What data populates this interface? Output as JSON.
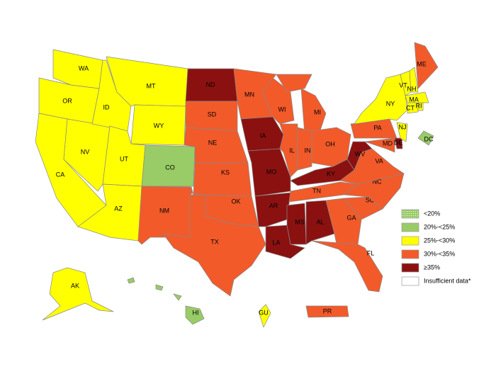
{
  "legend": [
    {
      "label": "<20%",
      "color": "#99cc66",
      "pattern": "dots"
    },
    {
      "label": "20%-<25%",
      "color": "#99cc66"
    },
    {
      "label": "25%-<30%",
      "color": "#ffff00"
    },
    {
      "label": "30%-<35%",
      "color": "#f25a2a"
    },
    {
      "label": "≥35%",
      "color": "#8b1111"
    },
    {
      "label": "Insufficient data*",
      "color": "#ffffff"
    }
  ],
  "states": [
    {
      "label": "WA",
      "color": "#ffff00"
    },
    {
      "label": "OR",
      "color": "#ffff00"
    },
    {
      "label": "CA",
      "color": "#ffff00"
    },
    {
      "label": "NV",
      "color": "#ffff00"
    },
    {
      "label": "ID",
      "color": "#ffff00"
    },
    {
      "label": "MT",
      "color": "#ffff00"
    },
    {
      "label": "WY",
      "color": "#ffff00"
    },
    {
      "label": "UT",
      "color": "#ffff00"
    },
    {
      "label": "AZ",
      "color": "#ffff00"
    },
    {
      "label": "CO",
      "color": "#99cc66"
    },
    {
      "label": "NM",
      "color": "#f25a2a"
    },
    {
      "label": "ND",
      "color": "#8b1111"
    },
    {
      "label": "SD",
      "color": "#f25a2a"
    },
    {
      "label": "NE",
      "color": "#f25a2a"
    },
    {
      "label": "KS",
      "color": "#f25a2a"
    },
    {
      "label": "OK",
      "color": "#f25a2a"
    },
    {
      "label": "TX",
      "color": "#f25a2a"
    },
    {
      "label": "MN",
      "color": "#f25a2a"
    },
    {
      "label": "IA",
      "color": "#8b1111"
    },
    {
      "label": "MO",
      "color": "#8b1111"
    },
    {
      "label": "AR",
      "color": "#8b1111"
    },
    {
      "label": "LA",
      "color": "#8b1111"
    },
    {
      "label": "WI",
      "color": "#f25a2a"
    },
    {
      "label": "IL",
      "color": "#f25a2a"
    },
    {
      "label": "MI",
      "color": "#f25a2a"
    },
    {
      "label": "IN",
      "color": "#f25a2a"
    },
    {
      "label": "OH",
      "color": "#f25a2a"
    },
    {
      "label": "KY",
      "color": "#8b1111"
    },
    {
      "label": "TN",
      "color": "#f25a2a"
    },
    {
      "label": "MS",
      "color": "#8b1111"
    },
    {
      "label": "AL",
      "color": "#8b1111"
    },
    {
      "label": "GA",
      "color": "#f25a2a"
    },
    {
      "label": "FL",
      "color": "#f25a2a"
    },
    {
      "label": "SC",
      "color": "#f25a2a"
    },
    {
      "label": "NC",
      "color": "#f25a2a"
    },
    {
      "label": "VA",
      "color": "#f25a2a"
    },
    {
      "label": "WV",
      "color": "#8b1111"
    },
    {
      "label": "PA",
      "color": "#f25a2a"
    },
    {
      "label": "NY",
      "color": "#ffff00"
    },
    {
      "label": "MD",
      "color": "#f25a2a"
    },
    {
      "label": "DE",
      "color": "#8b1111"
    },
    {
      "label": "NJ",
      "color": "#ffff00"
    },
    {
      "label": "VT",
      "color": "#ffff00"
    },
    {
      "label": "NH",
      "color": "#ffff00"
    },
    {
      "label": "ME",
      "color": "#f25a2a"
    },
    {
      "label": "MA",
      "color": "#ffff00"
    },
    {
      "label": "CT",
      "color": "#ffff00"
    },
    {
      "label": "RI",
      "color": "#ffff00"
    },
    {
      "label": "DC",
      "color": "#99cc66"
    },
    {
      "label": "AK",
      "color": "#ffff00"
    },
    {
      "label": "HI",
      "color": "#99cc66"
    },
    {
      "label": "GU",
      "color": "#ffff00"
    },
    {
      "label": "PR",
      "color": "#f25a2a"
    }
  ]
}
